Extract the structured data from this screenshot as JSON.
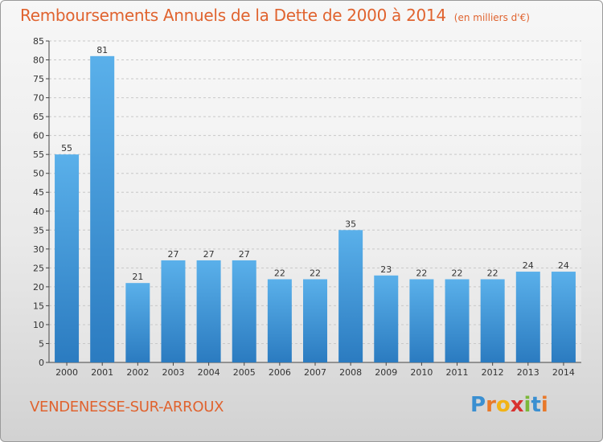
{
  "title": "Remboursements Annuels de la Dette de 2000 à 2014",
  "units": "(en milliers d'€)",
  "commune": "VENDENESSE-SUR-ARROUX",
  "logo": {
    "letters": [
      "P",
      "r",
      "o",
      "x",
      "i",
      "t",
      "i"
    ],
    "colors": [
      "#3a8fd1",
      "#e8792a",
      "#f2b316",
      "#d8312f",
      "#7cb83a",
      "#3a8fd1",
      "#e8792a"
    ]
  },
  "colors": {
    "bar_light": "#5ab0ea",
    "bar_dark": "#2b7bc0",
    "title": "#e0632f",
    "grid": "#c8c8c8"
  },
  "chart_data": {
    "type": "bar",
    "categories": [
      "2000",
      "2001",
      "2002",
      "2003",
      "2004",
      "2005",
      "2006",
      "2007",
      "2008",
      "2009",
      "2010",
      "2011",
      "2012",
      "2013",
      "2014"
    ],
    "values": [
      55,
      81,
      21,
      27,
      27,
      27,
      22,
      22,
      35,
      23,
      22,
      22,
      22,
      24,
      24
    ],
    "ylim": [
      0,
      85
    ],
    "yticks": [
      0,
      5,
      10,
      15,
      20,
      25,
      30,
      35,
      40,
      45,
      50,
      55,
      60,
      65,
      70,
      75,
      80,
      85
    ],
    "grid": true,
    "data_labels": true
  }
}
